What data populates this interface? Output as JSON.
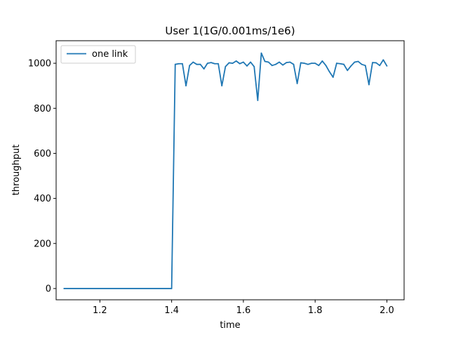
{
  "chart_data": {
    "type": "line",
    "title": "User 1(1G/0.001ms/1e6)",
    "xlabel": "time",
    "ylabel": "throughput",
    "xlim": [
      1.078,
      2.048
    ],
    "ylim": [
      -50,
      1100
    ],
    "xticks": [
      1.2,
      1.4,
      1.6,
      1.8,
      2.0
    ],
    "xtick_labels": [
      "1.2",
      "1.4",
      "1.6",
      "1.8",
      "2.0"
    ],
    "yticks": [
      0,
      200,
      400,
      600,
      800,
      1000
    ],
    "ytick_labels": [
      "0",
      "200",
      "400",
      "600",
      "800",
      "1000"
    ],
    "grid": false,
    "legend_position": "top-left",
    "colors": {
      "series": "#1f77b4",
      "frame": "#000000"
    },
    "series": [
      {
        "name": "one link",
        "x": [
          1.1,
          1.4,
          1.41,
          1.42,
          1.43,
          1.44,
          1.45,
          1.46,
          1.47,
          1.48,
          1.49,
          1.5,
          1.51,
          1.52,
          1.53,
          1.54,
          1.55,
          1.56,
          1.57,
          1.58,
          1.59,
          1.6,
          1.61,
          1.62,
          1.63,
          1.64,
          1.65,
          1.66,
          1.67,
          1.68,
          1.69,
          1.7,
          1.71,
          1.72,
          1.73,
          1.74,
          1.75,
          1.76,
          1.77,
          1.78,
          1.79,
          1.8,
          1.81,
          1.82,
          1.83,
          1.84,
          1.85,
          1.86,
          1.87,
          1.88,
          1.89,
          1.9,
          1.91,
          1.92,
          1.93,
          1.94,
          1.95,
          1.96,
          1.97,
          1.98,
          1.99,
          2.0
        ],
        "y": [
          0,
          0,
          995,
          998,
          998,
          900,
          990,
          1005,
          995,
          995,
          975,
          1000,
          1003,
          998,
          998,
          900,
          985,
          1002,
          1000,
          1010,
          998,
          1005,
          988,
          1005,
          985,
          835,
          1045,
          1008,
          1005,
          990,
          995,
          1005,
          992,
          1003,
          1005,
          995,
          910,
          1002,
          1000,
          995,
          1000,
          1000,
          990,
          1010,
          990,
          962,
          938,
          1000,
          998,
          995,
          968,
          988,
          1005,
          1008,
          995,
          990,
          905,
          1003,
          1002,
          990,
          1015,
          988
        ]
      }
    ]
  }
}
